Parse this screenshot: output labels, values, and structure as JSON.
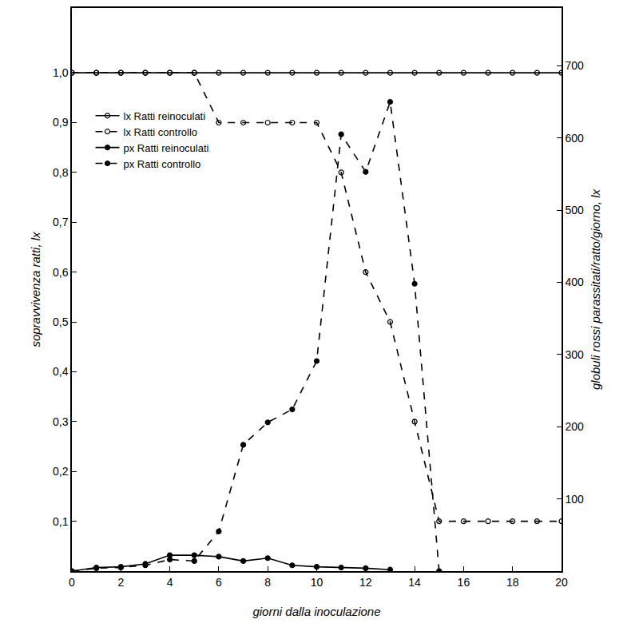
{
  "chart_data": {
    "type": "line",
    "x_label": "giorni dalla inoculazione",
    "y_label": "sopravvivenza ratti, lx",
    "y2_label": "globuli rossi parassitati/ratto/giorno, lx",
    "x": [
      0,
      1,
      2,
      3,
      4,
      5,
      6,
      7,
      8,
      9,
      10,
      11,
      12,
      13,
      14,
      15,
      16,
      17,
      18,
      19,
      20
    ],
    "xlim": [
      0,
      20
    ],
    "xticks": [
      0,
      2,
      4,
      6,
      8,
      10,
      12,
      14,
      16,
      18,
      20
    ],
    "ylim": [
      0,
      1.13
    ],
    "yticks": [
      {
        "value": 0.1,
        "label": "0,1"
      },
      {
        "value": 0.2,
        "label": "0,2"
      },
      {
        "value": 0.3,
        "label": "0,3"
      },
      {
        "value": 0.4,
        "label": "0,4"
      },
      {
        "value": 0.5,
        "label": "0,5"
      },
      {
        "value": 0.6,
        "label": "0,6"
      },
      {
        "value": 0.7,
        "label": "0,7"
      },
      {
        "value": 0.8,
        "label": "0,8"
      },
      {
        "value": 0.9,
        "label": "0,9"
      },
      {
        "value": 1.0,
        "label": "1,0"
      }
    ],
    "y2lim": [
      0,
      780
    ],
    "y2ticks": [
      100,
      200,
      300,
      400,
      500,
      600,
      700
    ],
    "grid": false,
    "legend": "upper left",
    "series": [
      {
        "name": "lx Ratti reinoculati",
        "color": "#000000",
        "marker": "open_circle",
        "line_style": "solid",
        "values": [
          1,
          1,
          1,
          1,
          1,
          1,
          1,
          1,
          1,
          1,
          1,
          1,
          1,
          1,
          1,
          1,
          1,
          1,
          1,
          1,
          1
        ]
      },
      {
        "name": "lx Ratti controllo",
        "color": "#000000",
        "marker": "open_circle",
        "line_style": "dash",
        "values": [
          1,
          1,
          1,
          1,
          1,
          1,
          0.9,
          0.9,
          0.9,
          0.9,
          0.9,
          0.8,
          0.6,
          0.5,
          0.3,
          0.1,
          0.1,
          0.1,
          0.1,
          0.1,
          0.1
        ]
      },
      {
        "name": "px Ratti reinoculati",
        "color": "#000000",
        "marker": "filled_circle",
        "line_style": "solid",
        "axis": "y2",
        "values": [
          0,
          5,
          6,
          10,
          22,
          22,
          20,
          14,
          18,
          8,
          6,
          5,
          4,
          2,
          null,
          null,
          null,
          null,
          null,
          null,
          null
        ]
      },
      {
        "name": "px Ratti controllo",
        "color": "#000000",
        "marker": "filled_circle",
        "line_style": "dash",
        "axis": "y2",
        "values": [
          0,
          4,
          5,
          8,
          16,
          14,
          55,
          175,
          206,
          224,
          291,
          605,
          553,
          650,
          398,
          0,
          null,
          null,
          null,
          null,
          null
        ]
      }
    ]
  }
}
